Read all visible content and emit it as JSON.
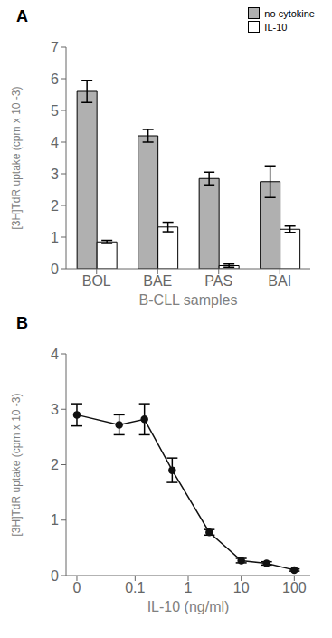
{
  "chart_data": [
    {
      "type": "bar",
      "categories": [
        "BOL",
        "BAE",
        "PAS",
        "BAI"
      ],
      "series": [
        {
          "name": "no cytokine",
          "color": "#b0b0b0",
          "values": [
            5.6,
            4.2,
            2.85,
            2.75
          ],
          "errors": [
            0.35,
            0.2,
            0.2,
            0.5
          ]
        },
        {
          "name": "IL-10",
          "color": "#ffffff",
          "values": [
            0.85,
            1.32,
            0.1,
            1.25
          ],
          "errors": [
            0.05,
            0.15,
            0.05,
            0.1
          ]
        }
      ],
      "xlabel": "B-CLL samples",
      "ylabel": "[3H]TdR uptake (cpm x 10 -3)",
      "ylim": [
        0,
        7
      ],
      "yticks": [
        0,
        1,
        2,
        3,
        4,
        5,
        6,
        7
      ],
      "legend": "upper right",
      "grid": false,
      "annotations": [
        "A"
      ]
    },
    {
      "type": "line",
      "x": [
        0.008,
        0.05,
        0.15,
        0.5,
        2.5,
        10,
        30,
        100
      ],
      "series": [
        {
          "color": "#111111",
          "values": [
            2.9,
            2.72,
            2.82,
            1.9,
            0.78,
            0.27,
            0.22,
            0.1
          ],
          "errors": [
            0.2,
            0.18,
            0.28,
            0.22,
            0.05,
            0.04,
            0.03,
            0.02
          ],
          "marker": "o"
        }
      ],
      "xlabel": "IL-10 (ng/ml)",
      "ylabel": "[3H]TdR uptake (cpm x 10 -3)",
      "log": "x",
      "xlim": [
        0.005,
        200
      ],
      "xticks": [
        {
          "value": 0.008,
          "label": "0"
        },
        0.1,
        1,
        10,
        100
      ],
      "ylim": [
        0,
        4
      ],
      "yticks": [
        0,
        1,
        2,
        3,
        4
      ],
      "grid": false,
      "annotations": [
        "B"
      ]
    }
  ]
}
